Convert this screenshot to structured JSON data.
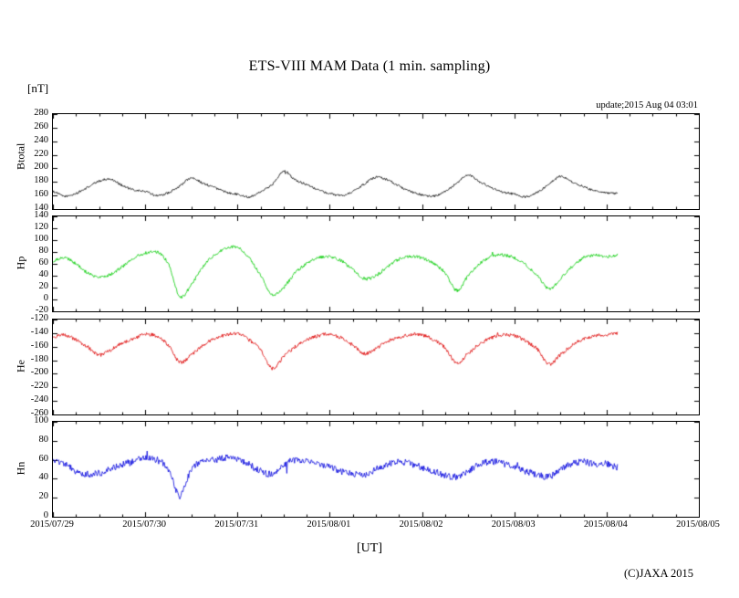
{
  "footer": {
    "copyright": "(C)JAXA 2015"
  },
  "chart_data": {
    "type": "line",
    "title": "ETS-VIII MAM Data (1 min. sampling)",
    "y_unit_label": "[nT]",
    "x_unit_label": "[UT]",
    "update_text": "update;2015 Aug 04 03:01",
    "x_axis": {
      "tick_labels": [
        "2015/07/29",
        "2015/07/30",
        "2015/07/31",
        "2015/08/01",
        "2015/08/02",
        "2015/08/03",
        "2015/08/04",
        "2015/08/05"
      ],
      "span_hours": 168,
      "data_end_hour": 147,
      "minor_tick_hours": 6
    },
    "sample_t_hours": [
      0,
      3,
      6,
      9,
      12,
      15,
      18,
      21,
      24,
      27,
      30,
      33,
      36,
      39,
      42,
      45,
      48,
      51,
      54,
      57,
      60,
      63,
      66,
      69,
      72,
      75,
      78,
      81,
      84,
      87,
      90,
      93,
      96,
      99,
      102,
      105,
      108,
      111,
      114,
      117,
      120,
      123,
      126,
      129,
      132,
      135,
      138,
      141,
      144,
      147
    ],
    "panels": [
      {
        "name": "Btotal",
        "color": "#000000",
        "ylim": [
          140,
          280
        ],
        "yticks": [
          140,
          160,
          180,
          200,
          220,
          240,
          260,
          280
        ],
        "noise": 1.6,
        "values": [
          166,
          159,
          163,
          172,
          181,
          184,
          175,
          168,
          166,
          160,
          164,
          174,
          186,
          178,
          172,
          165,
          162,
          158,
          166,
          176,
          196,
          183,
          176,
          168,
          163,
          160,
          166,
          177,
          187,
          183,
          174,
          166,
          161,
          159,
          166,
          178,
          190,
          180,
          172,
          165,
          162,
          158,
          165,
          176,
          188,
          180,
          173,
          167,
          164,
          163
        ]
      },
      {
        "name": "Hp",
        "color": "#00cc00",
        "ylim": [
          -20,
          140
        ],
        "yticks": [
          -20,
          0,
          20,
          40,
          60,
          80,
          100,
          120,
          140
        ],
        "noise": 2.6,
        "values": [
          65,
          70,
          60,
          45,
          38,
          42,
          55,
          70,
          78,
          80,
          60,
          5,
          25,
          55,
          75,
          85,
          88,
          70,
          40,
          8,
          20,
          45,
          60,
          70,
          72,
          65,
          50,
          35,
          40,
          55,
          68,
          72,
          70,
          60,
          45,
          15,
          40,
          60,
          72,
          75,
          70,
          58,
          40,
          18,
          35,
          55,
          70,
          75,
          72,
          75
        ]
      },
      {
        "name": "He",
        "color": "#dd0000",
        "ylim": [
          -260,
          -120
        ],
        "yticks": [
          -260,
          -240,
          -220,
          -200,
          -180,
          -160,
          -140,
          -120
        ],
        "noise": 2.6,
        "values": [
          -145,
          -143,
          -150,
          -160,
          -172,
          -165,
          -155,
          -148,
          -142,
          -145,
          -158,
          -183,
          -172,
          -158,
          -148,
          -143,
          -141,
          -150,
          -165,
          -192,
          -175,
          -160,
          -150,
          -144,
          -142,
          -147,
          -158,
          -170,
          -163,
          -152,
          -146,
          -142,
          -143,
          -150,
          -162,
          -184,
          -170,
          -156,
          -147,
          -143,
          -144,
          -152,
          -164,
          -186,
          -172,
          -158,
          -149,
          -144,
          -143,
          -140
        ]
      },
      {
        "name": "Hn",
        "color": "#0000dd",
        "ylim": [
          0,
          100
        ],
        "yticks": [
          0,
          20,
          40,
          60,
          80,
          100
        ],
        "noise": 3.6,
        "values": [
          60,
          55,
          48,
          45,
          46,
          50,
          55,
          58,
          62,
          60,
          50,
          22,
          50,
          58,
          60,
          62,
          60,
          55,
          48,
          45,
          55,
          60,
          58,
          55,
          52,
          48,
          45,
          44,
          50,
          55,
          58,
          56,
          52,
          48,
          44,
          42,
          48,
          55,
          58,
          56,
          52,
          48,
          44,
          42,
          50,
          56,
          58,
          55,
          56,
          52
        ]
      }
    ]
  }
}
